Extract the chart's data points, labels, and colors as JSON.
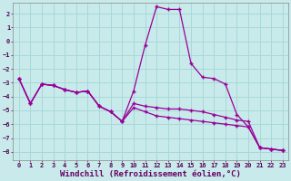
{
  "background_color": "#c8eaea",
  "grid_color": "#a8d8d8",
  "line_color": "#990099",
  "xlabel": "Windchill (Refroidissement éolien,°C)",
  "xlabel_fontsize": 6.5,
  "yticks": [
    -8,
    -7,
    -6,
    -5,
    -4,
    -3,
    -2,
    -1,
    0,
    1,
    2
  ],
  "xticks": [
    0,
    1,
    2,
    3,
    4,
    5,
    6,
    7,
    8,
    9,
    10,
    11,
    12,
    13,
    14,
    15,
    16,
    17,
    18,
    19,
    20,
    21,
    22,
    23
  ],
  "xlim": [
    -0.5,
    23.5
  ],
  "ylim": [
    -8.6,
    2.8
  ],
  "series": [
    {
      "x": [
        0,
        1,
        2,
        3,
        4,
        5,
        6,
        7,
        8,
        9,
        10,
        11,
        12,
        13,
        14,
        15,
        16,
        17,
        18,
        19,
        20,
        21,
        22,
        23
      ],
      "y": [
        -2.7,
        -4.5,
        -3.1,
        -3.2,
        -3.5,
        -3.7,
        -3.6,
        -4.7,
        -5.1,
        -5.8,
        -3.6,
        -0.3,
        2.5,
        2.3,
        2.3,
        -1.6,
        -2.6,
        -2.7,
        -3.1,
        -5.3,
        -6.2,
        -7.7,
        -7.8,
        -7.9
      ]
    },
    {
      "x": [
        0,
        1,
        2,
        3,
        4,
        5,
        6,
        7,
        8,
        9,
        10,
        11,
        12,
        13,
        14,
        15,
        16,
        17,
        18,
        19,
        20,
        21,
        22,
        23
      ],
      "y": [
        -2.7,
        -4.5,
        -3.1,
        -3.2,
        -3.5,
        -3.7,
        -3.6,
        -4.7,
        -5.1,
        -5.8,
        -4.5,
        -4.7,
        -4.8,
        -4.9,
        -4.9,
        -5.0,
        -5.1,
        -5.3,
        -5.5,
        -5.7,
        -5.8,
        -7.7,
        -7.8,
        -7.9
      ]
    },
    {
      "x": [
        0,
        1,
        2,
        3,
        4,
        5,
        6,
        7,
        8,
        9,
        10,
        11,
        12,
        13,
        14,
        15,
        16,
        17,
        18,
        19,
        20,
        21,
        22,
        23
      ],
      "y": [
        -2.7,
        -4.5,
        -3.1,
        -3.2,
        -3.5,
        -3.7,
        -3.6,
        -4.7,
        -5.1,
        -5.8,
        -4.8,
        -5.1,
        -5.4,
        -5.5,
        -5.6,
        -5.7,
        -5.8,
        -5.9,
        -6.0,
        -6.1,
        -6.2,
        -7.7,
        -7.8,
        -7.9
      ]
    }
  ]
}
